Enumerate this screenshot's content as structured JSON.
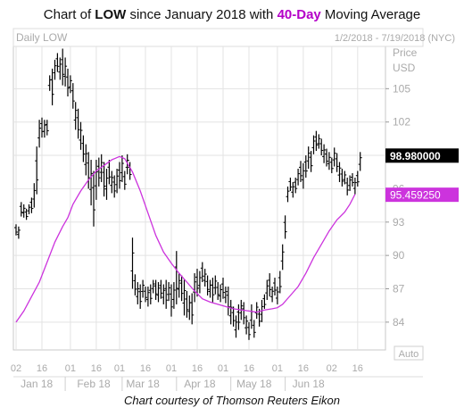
{
  "title": {
    "prefix": "Chart of ",
    "ticker": "LOW",
    "middle": " since January 2018 with ",
    "ma_label": "40-Day",
    "suffix": " Moving Average"
  },
  "caption": "Chart courtesy of Thomson Reuters Eikon",
  "colors": {
    "price": "#000000",
    "moving_average": "#cc33dd",
    "ma_badge": "#cc33dd",
    "price_badge": "#000000",
    "grid": "#e3e3e3",
    "label_gray": "#aaaaaa"
  },
  "chart_data": {
    "type": "line",
    "header_left": "Daily LOW",
    "header_right": "1/2/2018 - 7/19/2018 (NYC)",
    "price_axis_label_1": "Price",
    "price_axis_label_2": "USD",
    "auto_label": "Auto",
    "ylim": [
      81.5,
      108.8
    ],
    "y_ticks": [
      84,
      87,
      90,
      93,
      96,
      99,
      102,
      105
    ],
    "last_price": 98.98,
    "last_price_label": "98.980000",
    "ma_last": 95.45925,
    "ma_last_label": "95.459250",
    "x_ticks": [
      {
        "label": "02",
        "t": 0.0
      },
      {
        "label": "16",
        "t": 10.0
      },
      {
        "label": "01",
        "t": 21.0
      },
      {
        "label": "16",
        "t": 31.0
      },
      {
        "label": "01",
        "t": 40.0
      },
      {
        "label": "16",
        "t": 50.0
      },
      {
        "label": "01",
        "t": 60.0
      },
      {
        "label": "16",
        "t": 70.0
      },
      {
        "label": "01",
        "t": 80.0
      },
      {
        "label": "16",
        "t": 90.0
      },
      {
        "label": "01",
        "t": 101.0
      },
      {
        "label": "16",
        "t": 111.0
      },
      {
        "label": "02",
        "t": 122.0
      },
      {
        "label": "16",
        "t": 132.0
      }
    ],
    "month_labels": [
      {
        "label": "Jan 18",
        "t": 8.0
      },
      {
        "label": "Feb 18",
        "t": 30.0
      },
      {
        "label": "Mar 18",
        "t": 49.0
      },
      {
        "label": "Apr 18",
        "t": 71.0
      },
      {
        "label": "May 18",
        "t": 92.0
      },
      {
        "label": "Jun 18",
        "t": 113.0
      }
    ],
    "month_separators": [
      19.0,
      41.0,
      62.0,
      83.0,
      104.0
    ],
    "ma_t0": 0.0,
    "series": [
      {
        "name": "LOW",
        "kind": "ohlc",
        "t0": 0,
        "bars": [
          [
            91.8,
            92.8
          ],
          [
            91.5,
            92.6
          ],
          [
            93.5,
            94.8
          ],
          [
            93.4,
            94.6
          ],
          [
            93.2,
            94.2
          ],
          [
            93.7,
            94.6
          ],
          [
            93.8,
            95.2
          ],
          [
            94.3,
            96.5
          ],
          [
            95.5,
            99.8
          ],
          [
            99.7,
            102.2
          ],
          [
            100.6,
            102.4
          ],
          [
            100.6,
            102.2
          ],
          [
            100.8,
            102.2
          ],
          [
            104.8,
            106.2
          ],
          [
            103.5,
            106.8
          ],
          [
            105.8,
            107.6
          ],
          [
            106.5,
            108.2
          ],
          [
            105.8,
            107.8
          ],
          [
            105.3,
            108.6
          ],
          [
            105.2,
            107.8
          ],
          [
            104.3,
            106.8
          ],
          [
            104.6,
            106.2
          ],
          [
            103.2,
            105.5
          ],
          [
            101.3,
            103.8
          ],
          [
            100.5,
            103.2
          ],
          [
            99.5,
            102.0
          ],
          [
            98.4,
            100.8
          ],
          [
            97.2,
            100.0
          ],
          [
            96.0,
            99.3
          ],
          [
            94.5,
            98.6
          ],
          [
            92.6,
            97.6
          ],
          [
            95.0,
            98.6
          ],
          [
            96.2,
            98.8
          ],
          [
            96.6,
            99.1
          ],
          [
            95.3,
            98.4
          ],
          [
            95.0,
            97.8
          ],
          [
            96.4,
            98.6
          ],
          [
            95.6,
            97.6
          ],
          [
            95.2,
            97.2
          ],
          [
            95.6,
            97.8
          ],
          [
            96.0,
            98.4
          ],
          [
            96.6,
            99.0
          ],
          [
            95.9,
            97.6
          ],
          [
            97.3,
            99.1
          ],
          [
            96.8,
            98.4
          ],
          [
            87.0,
            91.6
          ],
          [
            86.4,
            88.3
          ],
          [
            85.6,
            87.6
          ],
          [
            85.2,
            87.4
          ],
          [
            86.2,
            87.8
          ],
          [
            85.8,
            87.2
          ],
          [
            85.4,
            87.2
          ],
          [
            85.6,
            87.4
          ],
          [
            86.6,
            87.8
          ],
          [
            86.0,
            87.8
          ],
          [
            85.8,
            87.6
          ],
          [
            86.1,
            87.8
          ],
          [
            85.6,
            87.4
          ],
          [
            85.2,
            87.8
          ],
          [
            85.9,
            87.6
          ],
          [
            84.5,
            87.4
          ],
          [
            85.2,
            87.6
          ],
          [
            85.6,
            90.4
          ],
          [
            86.2,
            88.4
          ],
          [
            85.9,
            88.2
          ],
          [
            84.6,
            87.8
          ],
          [
            84.4,
            86.8
          ],
          [
            84.2,
            86.4
          ],
          [
            83.8,
            86.6
          ],
          [
            85.8,
            88.4
          ],
          [
            86.3,
            88.8
          ],
          [
            86.6,
            88.6
          ],
          [
            87.6,
            89.4
          ],
          [
            87.2,
            88.8
          ],
          [
            86.4,
            88.2
          ],
          [
            86.2,
            87.8
          ],
          [
            85.8,
            88.0
          ],
          [
            86.5,
            88.2
          ],
          [
            86.0,
            87.6
          ],
          [
            85.8,
            87.4
          ],
          [
            86.1,
            88.0
          ],
          [
            85.7,
            87.2
          ],
          [
            84.6,
            87.2
          ],
          [
            83.8,
            86.0
          ],
          [
            83.6,
            85.4
          ],
          [
            82.6,
            84.6
          ],
          [
            83.3,
            85.6
          ],
          [
            84.2,
            86.0
          ],
          [
            83.8,
            85.8
          ],
          [
            82.9,
            84.6
          ],
          [
            82.4,
            84.0
          ],
          [
            83.4,
            85.6
          ],
          [
            82.6,
            84.2
          ],
          [
            84.3,
            85.8
          ],
          [
            83.6,
            85.2
          ],
          [
            84.0,
            86.0
          ],
          [
            85.2,
            86.5
          ],
          [
            86.0,
            87.8
          ],
          [
            86.3,
            88.4
          ],
          [
            85.8,
            87.2
          ],
          [
            86.4,
            88.0
          ],
          [
            85.6,
            87.2
          ],
          [
            86.6,
            88.6
          ],
          [
            88.7,
            91.0
          ],
          [
            91.5,
            93.6
          ],
          [
            94.8,
            96.2
          ],
          [
            95.8,
            97.0
          ],
          [
            95.2,
            96.6
          ],
          [
            95.6,
            97.0
          ],
          [
            96.3,
            97.8
          ],
          [
            96.6,
            98.5
          ],
          [
            96.0,
            98.3
          ],
          [
            97.0,
            99.0
          ],
          [
            97.8,
            99.8
          ],
          [
            97.5,
            99.4
          ],
          [
            99.1,
            100.8
          ],
          [
            99.4,
            101.2
          ],
          [
            99.6,
            100.9
          ],
          [
            99.0,
            100.5
          ],
          [
            98.3,
            100.0
          ],
          [
            98.0,
            99.6
          ],
          [
            97.7,
            99.3
          ],
          [
            97.4,
            98.8
          ],
          [
            98.0,
            99.7
          ],
          [
            97.5,
            99.2
          ],
          [
            96.6,
            98.4
          ],
          [
            96.2,
            97.8
          ],
          [
            96.4,
            97.6
          ],
          [
            95.4,
            97.0
          ],
          [
            95.8,
            97.2
          ],
          [
            96.2,
            97.4
          ],
          [
            95.5,
            97.0
          ],
          [
            96.2,
            97.6
          ],
          [
            97.6,
            99.3
          ]
        ]
      },
      {
        "name": "40-Day",
        "kind": "moving_average",
        "points": [
          [
            0,
            84.0
          ],
          [
            3,
            85.0
          ],
          [
            6,
            86.3
          ],
          [
            9,
            87.6
          ],
          [
            12,
            89.4
          ],
          [
            15,
            91.2
          ],
          [
            18,
            92.6
          ],
          [
            20,
            93.4
          ],
          [
            22,
            94.6
          ],
          [
            25,
            95.8
          ],
          [
            28,
            96.8
          ],
          [
            31,
            97.6
          ],
          [
            34,
            98.1
          ],
          [
            37,
            98.6
          ],
          [
            40,
            98.9
          ],
          [
            42,
            98.7
          ],
          [
            45,
            97.5
          ],
          [
            48,
            95.8
          ],
          [
            51,
            93.8
          ],
          [
            54,
            91.8
          ],
          [
            57,
            90.3
          ],
          [
            60,
            89.3
          ],
          [
            63,
            88.4
          ],
          [
            66,
            87.6
          ],
          [
            69,
            86.8
          ],
          [
            72,
            86.1
          ],
          [
            75,
            85.8
          ],
          [
            78,
            85.6
          ],
          [
            81,
            85.4
          ],
          [
            84,
            85.2
          ],
          [
            87,
            85.1
          ],
          [
            90,
            85.0
          ],
          [
            93,
            84.9
          ],
          [
            96,
            85.1
          ],
          [
            99,
            85.2
          ],
          [
            101,
            85.3
          ],
          [
            103,
            85.6
          ],
          [
            106,
            86.4
          ],
          [
            109,
            87.2
          ],
          [
            112,
            88.4
          ],
          [
            115,
            89.8
          ],
          [
            118,
            91.0
          ],
          [
            121,
            92.2
          ],
          [
            124,
            93.2
          ],
          [
            127,
            93.9
          ],
          [
            129,
            94.6
          ],
          [
            131,
            95.5
          ]
        ]
      }
    ]
  }
}
